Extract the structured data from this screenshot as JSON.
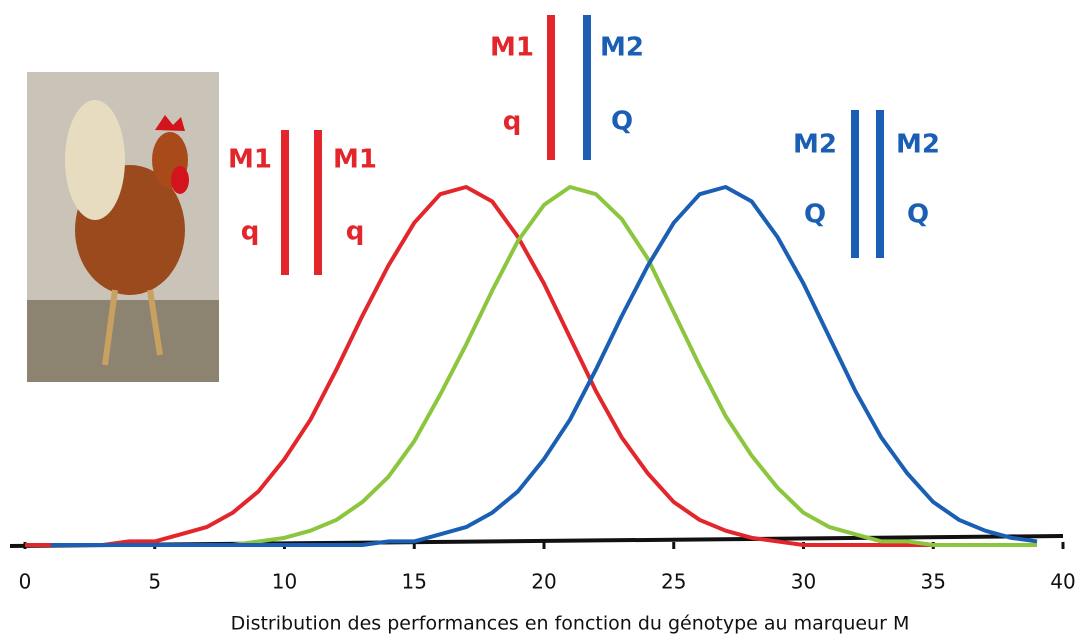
{
  "chart_data": {
    "type": "line",
    "x_label": "Distribution des performances en fonction du génotype au marqueur M",
    "x": [
      0,
      1,
      2,
      3,
      4,
      5,
      6,
      7,
      8,
      9,
      10,
      11,
      12,
      13,
      14,
      15,
      16,
      17,
      18,
      19,
      20,
      21,
      22,
      23,
      24,
      25,
      26,
      27,
      28,
      29,
      30,
      31,
      32,
      33,
      34,
      35,
      36,
      37,
      38,
      39
    ],
    "xlim": [
      0,
      40
    ],
    "xticks": [
      0,
      5,
      10,
      15,
      20,
      25,
      30,
      35,
      40
    ],
    "ylim": [
      0,
      1
    ],
    "series": [
      {
        "color": "#e3262b",
        "values": [
          0,
          0,
          0,
          0,
          0.01,
          0.01,
          0.03,
          0.05,
          0.09,
          0.15,
          0.24,
          0.35,
          0.49,
          0.64,
          0.78,
          0.9,
          0.98,
          1,
          0.96,
          0.86,
          0.73,
          0.58,
          0.43,
          0.3,
          0.2,
          0.12,
          0.07,
          0.04,
          0.02,
          0.01,
          0,
          0,
          0,
          0,
          0,
          0,
          0,
          null,
          null,
          null
        ]
      },
      {
        "color": "#8cc63f",
        "values": [
          null,
          null,
          null,
          null,
          0,
          0,
          0,
          0,
          0,
          0.01,
          0.02,
          0.04,
          0.07,
          0.12,
          0.19,
          0.29,
          0.42,
          0.56,
          0.71,
          0.85,
          0.95,
          1,
          0.98,
          0.91,
          0.8,
          0.65,
          0.5,
          0.36,
          0.25,
          0.16,
          0.09,
          0.05,
          0.03,
          0.01,
          0.01,
          0,
          0,
          0,
          0,
          0
        ]
      },
      {
        "color": "#1a5fb4",
        "values": [
          null,
          0,
          0,
          0,
          0,
          0,
          0,
          0,
          0,
          0,
          0,
          0,
          0,
          0,
          0.01,
          0.01,
          0.03,
          0.05,
          0.09,
          0.15,
          0.24,
          0.35,
          0.49,
          0.64,
          0.78,
          0.9,
          0.98,
          1,
          0.96,
          0.86,
          0.73,
          0.58,
          0.43,
          0.3,
          0.2,
          0.12,
          0.07,
          0.04,
          0.02,
          0.01
        ]
      }
    ],
    "annotations": [
      {
        "left_top": "M1",
        "left_bottom": "q",
        "right_top": "M1",
        "right_bottom": "q",
        "left_color": "#e3262b",
        "right_color": "#e3262b"
      },
      {
        "left_top": "M1",
        "left_bottom": "q",
        "right_top": "M2",
        "right_bottom": "Q",
        "left_color": "#e3262b",
        "right_color": "#1a5fb4"
      },
      {
        "left_top": "M2",
        "left_bottom": "Q",
        "right_top": "M2",
        "right_bottom": "Q",
        "left_color": "#1a5fb4",
        "right_color": "#1a5fb4"
      }
    ]
  }
}
